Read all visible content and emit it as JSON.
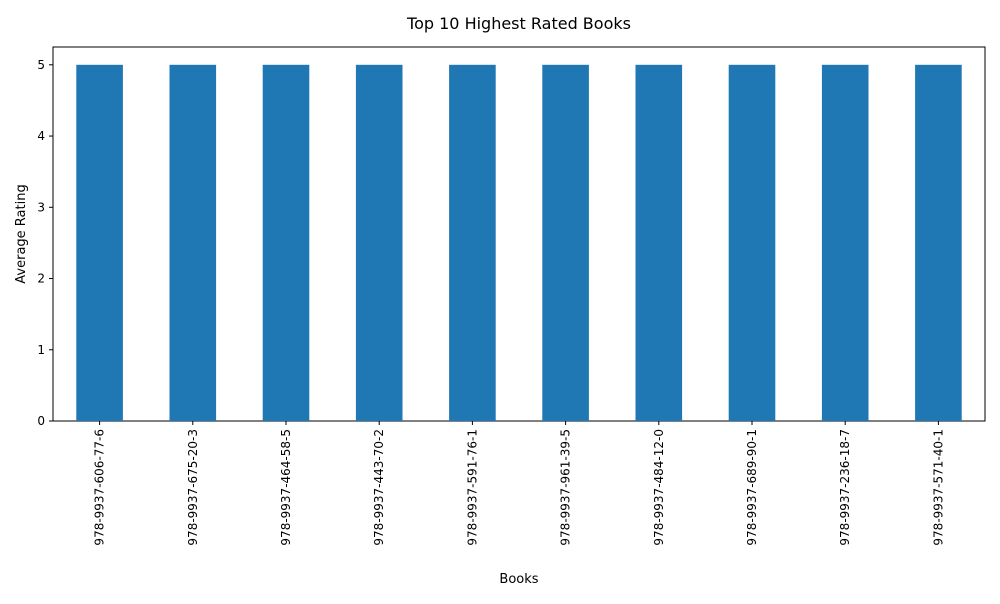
{
  "chart_data": {
    "type": "bar",
    "title": "Top 10 Highest Rated Books",
    "xlabel": "Books",
    "ylabel": "Average Rating",
    "categories": [
      "978-9937-606-77-6",
      "978-9937-675-20-3",
      "978-9937-464-58-5",
      "978-9937-443-70-2",
      "978-9937-591-76-1",
      "978-9937-961-39-5",
      "978-9937-484-12-0",
      "978-9937-689-90-1",
      "978-9937-236-18-7",
      "978-9937-571-40-1"
    ],
    "values": [
      5,
      5,
      5,
      5,
      5,
      5,
      5,
      5,
      5,
      5
    ],
    "ylim": [
      0,
      5.25
    ],
    "yticks": [
      0,
      1,
      2,
      3,
      4,
      5
    ],
    "bar_color": "#1f77b4",
    "grid": false,
    "legend": "none"
  }
}
